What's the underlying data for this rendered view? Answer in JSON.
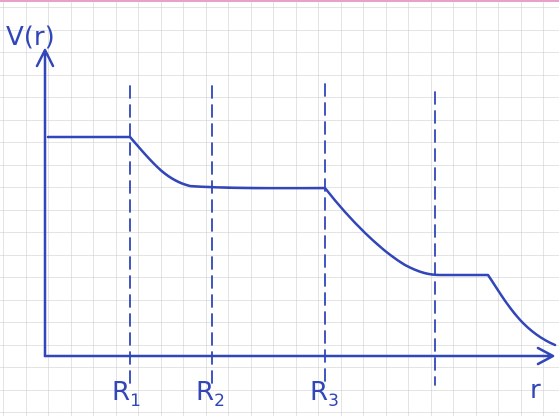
{
  "y_axis_label": "V(r)",
  "x_axis_label": "r",
  "markers": [
    {
      "label": "R",
      "subscript": "1"
    },
    {
      "label": "R",
      "subscript": "2"
    },
    {
      "label": "R",
      "subscript": "3"
    }
  ]
}
